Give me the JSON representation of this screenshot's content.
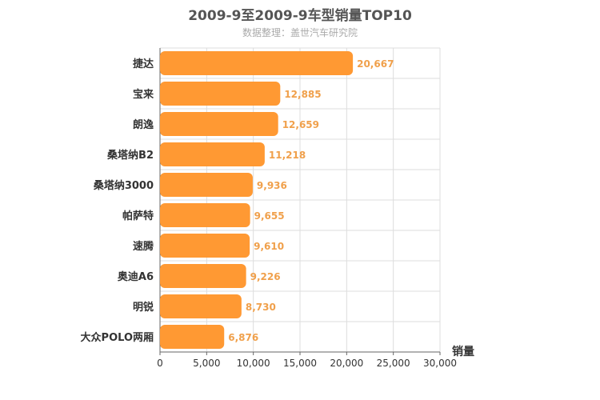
{
  "chart_data": {
    "type": "bar",
    "orientation": "horizontal",
    "title": "2009-9至2009-9车型销量TOP10",
    "subtitle": "数据整理：盖世汽车研究院",
    "xlabel": "销量",
    "ylabel": "",
    "categories": [
      "捷达",
      "宝来",
      "朗逸",
      "桑塔纳B2",
      "桑塔纳3000",
      "帕萨特",
      "速腾",
      "奥迪A6",
      "明锐",
      "大众POLO两厢"
    ],
    "values": [
      20667,
      12885,
      12659,
      11218,
      9936,
      9655,
      9610,
      9226,
      8730,
      6876
    ],
    "value_labels": [
      "20,667",
      "12,885",
      "12,659",
      "11,218",
      "9,936",
      "9,655",
      "9,610",
      "9,226",
      "8,730",
      "6,876"
    ],
    "xlim": [
      0,
      30000
    ],
    "ticks": [
      0,
      5000,
      10000,
      15000,
      20000,
      25000,
      30000
    ],
    "tick_labels": [
      "0",
      "5,000",
      "10,000",
      "15,000",
      "20,000",
      "25,000",
      "30,000"
    ],
    "grid": true,
    "colors": {
      "bar": "#ff9933",
      "value_label": "#f0a04b",
      "grid": "#dddddd",
      "axis": "#666666"
    }
  }
}
